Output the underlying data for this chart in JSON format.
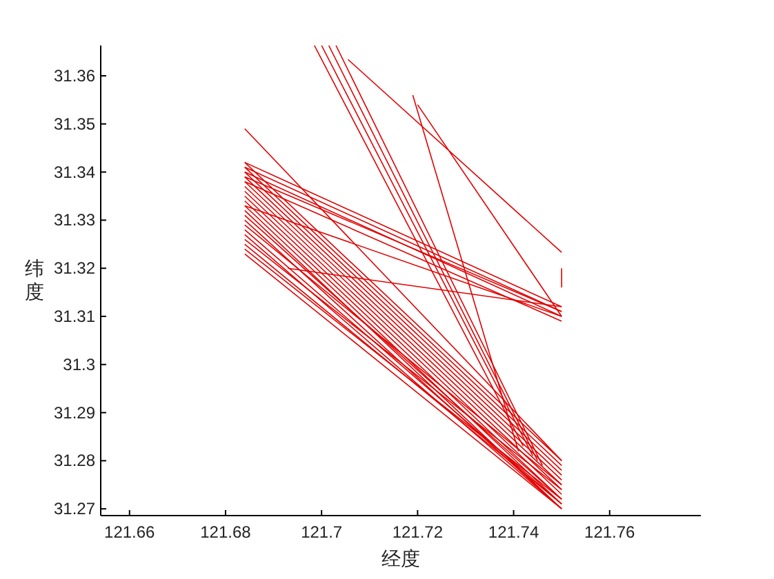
{
  "chart_data": {
    "type": "line",
    "xlabel": "经度",
    "ylabel": "纬度",
    "xlim": [
      121.654,
      121.779
    ],
    "ylim": [
      31.2686,
      31.3663
    ],
    "xticks": [
      121.66,
      121.68,
      121.7,
      121.72,
      121.74,
      121.76
    ],
    "yticks": [
      31.27,
      31.28,
      31.29,
      31.3,
      31.31,
      31.32,
      31.33,
      31.34,
      31.35,
      31.36
    ],
    "series": [
      {
        "color": "#e00000",
        "x": [
          121.684,
          121.75
        ],
        "values": [
          31.342,
          31.28
        ]
      },
      {
        "color": "#e00000",
        "x": [
          121.684,
          121.75
        ],
        "values": [
          31.341,
          31.279
        ]
      },
      {
        "color": "#e00000",
        "x": [
          121.684,
          121.75
        ],
        "values": [
          31.34,
          31.278
        ]
      },
      {
        "color": "#e00000",
        "x": [
          121.684,
          121.75
        ],
        "values": [
          31.339,
          31.277
        ]
      },
      {
        "color": "#e00000",
        "x": [
          121.684,
          121.75
        ],
        "values": [
          31.338,
          31.276
        ]
      },
      {
        "color": "#e00000",
        "x": [
          121.684,
          121.75
        ],
        "values": [
          31.337,
          31.275
        ]
      },
      {
        "color": "#e00000",
        "x": [
          121.684,
          121.75
        ],
        "values": [
          31.336,
          31.274
        ]
      },
      {
        "color": "#e00000",
        "x": [
          121.684,
          121.75
        ],
        "values": [
          31.335,
          31.273
        ]
      },
      {
        "color": "#e00000",
        "x": [
          121.684,
          121.75
        ],
        "values": [
          31.334,
          31.272
        ]
      },
      {
        "color": "#e00000",
        "x": [
          121.684,
          121.75
        ],
        "values": [
          31.333,
          31.271
        ]
      },
      {
        "color": "#e00000",
        "x": [
          121.684,
          121.75
        ],
        "values": [
          31.332,
          31.27
        ]
      },
      {
        "color": "#e00000",
        "x": [
          121.684,
          121.75
        ],
        "values": [
          31.331,
          31.272
        ]
      },
      {
        "color": "#e00000",
        "x": [
          121.684,
          121.75
        ],
        "values": [
          31.33,
          31.27
        ]
      },
      {
        "color": "#e00000",
        "x": [
          121.684,
          121.75
        ],
        "values": [
          31.329,
          31.275
        ]
      },
      {
        "color": "#e00000",
        "x": [
          121.684,
          121.75
        ],
        "values": [
          31.328,
          31.271
        ]
      },
      {
        "color": "#e00000",
        "x": [
          121.684,
          121.75
        ],
        "values": [
          31.327,
          31.27
        ]
      },
      {
        "color": "#e00000",
        "x": [
          121.684,
          121.75
        ],
        "values": [
          31.326,
          31.274
        ]
      },
      {
        "color": "#e00000",
        "x": [
          121.684,
          121.75
        ],
        "values": [
          31.325,
          31.271
        ]
      },
      {
        "color": "#e00000",
        "x": [
          121.684,
          121.75
        ],
        "values": [
          31.324,
          31.272
        ]
      },
      {
        "color": "#e00000",
        "x": [
          121.684,
          121.75
        ],
        "values": [
          31.323,
          31.27
        ]
      },
      {
        "color": "#e00000",
        "x": [
          121.684,
          121.75
        ],
        "values": [
          31.349,
          31.28
        ]
      },
      {
        "color": "#e00000",
        "x": [
          121.684,
          121.75
        ],
        "values": [
          31.342,
          31.312
        ]
      },
      {
        "color": "#e00000",
        "x": [
          121.684,
          121.75
        ],
        "values": [
          31.341,
          31.311
        ]
      },
      {
        "color": "#e00000",
        "x": [
          121.684,
          121.75
        ],
        "values": [
          31.34,
          31.31
        ]
      },
      {
        "color": "#e00000",
        "x": [
          121.684,
          121.75
        ],
        "values": [
          31.339,
          31.311
        ]
      },
      {
        "color": "#e00000",
        "x": [
          121.684,
          121.75
        ],
        "values": [
          31.338,
          31.309
        ]
      },
      {
        "color": "#e00000",
        "x": [
          121.684,
          121.75
        ],
        "values": [
          31.333,
          31.31
        ]
      },
      {
        "color": "#e00000",
        "x": [
          121.6985,
          121.742
        ],
        "values": [
          31.3663,
          31.283
        ]
      },
      {
        "color": "#e00000",
        "x": [
          121.7,
          121.744
        ],
        "values": [
          31.3663,
          31.281
        ]
      },
      {
        "color": "#e00000",
        "x": [
          121.7015,
          121.745
        ],
        "values": [
          31.3663,
          31.28
        ]
      },
      {
        "color": "#e00000",
        "x": [
          121.703,
          121.746
        ],
        "values": [
          31.3663,
          31.279
        ]
      },
      {
        "color": "#e00000",
        "x": [
          121.7055,
          121.75
        ],
        "values": [
          31.3634,
          31.3233
        ]
      },
      {
        "color": "#e00000",
        "x": [
          121.719,
          121.741
        ],
        "values": [
          31.356,
          31.282
        ]
      },
      {
        "color": "#e00000",
        "x": [
          121.72,
          121.75
        ],
        "values": [
          31.354,
          31.31
        ]
      },
      {
        "color": "#e00000",
        "x": [
          121.693,
          121.75
        ],
        "values": [
          31.32,
          31.312
        ]
      },
      {
        "color": "#e00000",
        "x": [
          121.75,
          121.75
        ],
        "values": [
          31.32,
          31.316
        ]
      }
    ]
  }
}
